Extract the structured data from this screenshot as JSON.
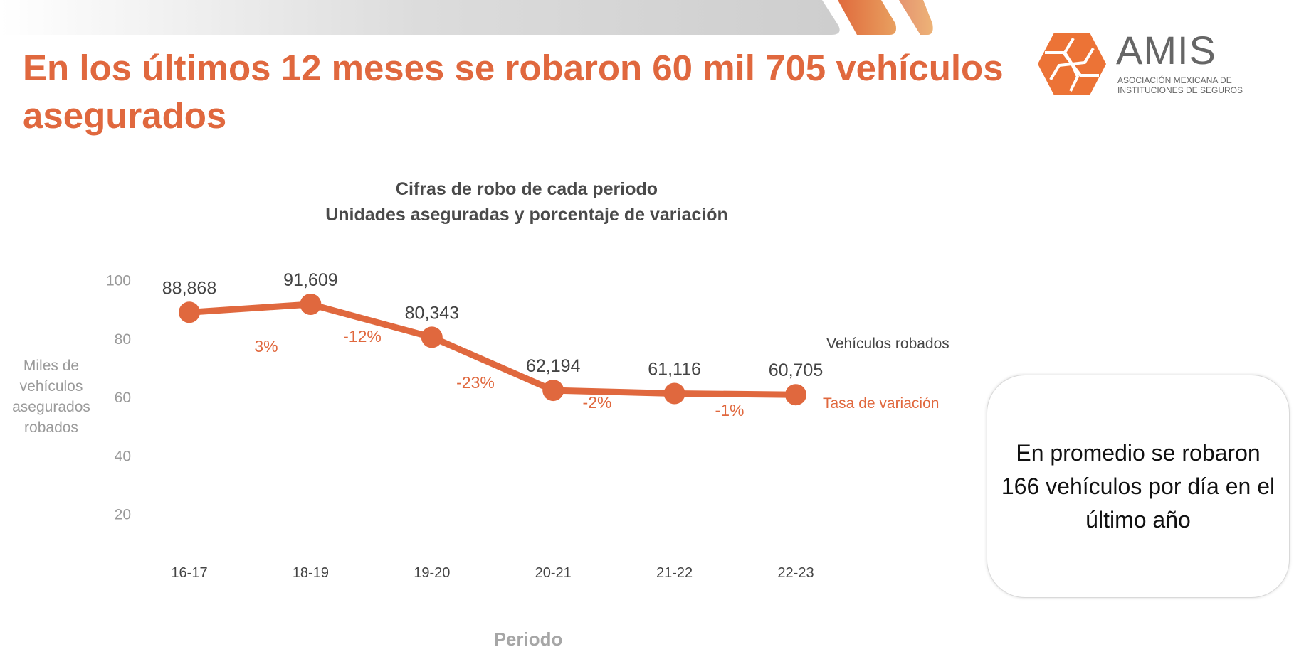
{
  "slide": {
    "title": "En los últimos 12 meses se robaron 60 mil 705 vehículos asegurados",
    "logo": {
      "name": "AMIS",
      "subtitle_line1": "ASOCIACIÓN MEXICANA DE",
      "subtitle_line2": "INSTITUCIONES DE SEGUROS"
    },
    "callout": "En promedio se robaron 166 vehículos por día en el último año",
    "colors": {
      "accent": "#E0683E",
      "text_dark": "#4a4a4a",
      "axis_gray": "#9a9a9a"
    }
  },
  "chart_data": {
    "type": "line",
    "title": "Cifras de robo de cada periodo",
    "subtitle": "Unidades aseguradas y porcentaje de variación",
    "xlabel": "Periodo",
    "ylabel": "Miles de vehículos asegurados robados",
    "ylim": [
      0,
      100
    ],
    "yticks": [
      "20",
      "40",
      "60",
      "80",
      "100"
    ],
    "ytick_values": [
      20,
      40,
      60,
      80,
      100
    ],
    "categories": [
      "16-17",
      "18-19",
      "19-20",
      "20-21",
      "21-22",
      "22-23"
    ],
    "series": [
      {
        "name": "Vehículos robados",
        "values": [
          88.868,
          91.609,
          80.343,
          62.194,
          61.116,
          60.705
        ],
        "labels": [
          "88,868",
          "91,609",
          "80,343",
          "62,194",
          "61,116",
          "60,705"
        ]
      }
    ],
    "variation": {
      "name": "Tasa de variación",
      "labels": [
        "3%",
        "-12%",
        "-23%",
        "-2%",
        "-1%"
      ]
    },
    "grid": false
  }
}
